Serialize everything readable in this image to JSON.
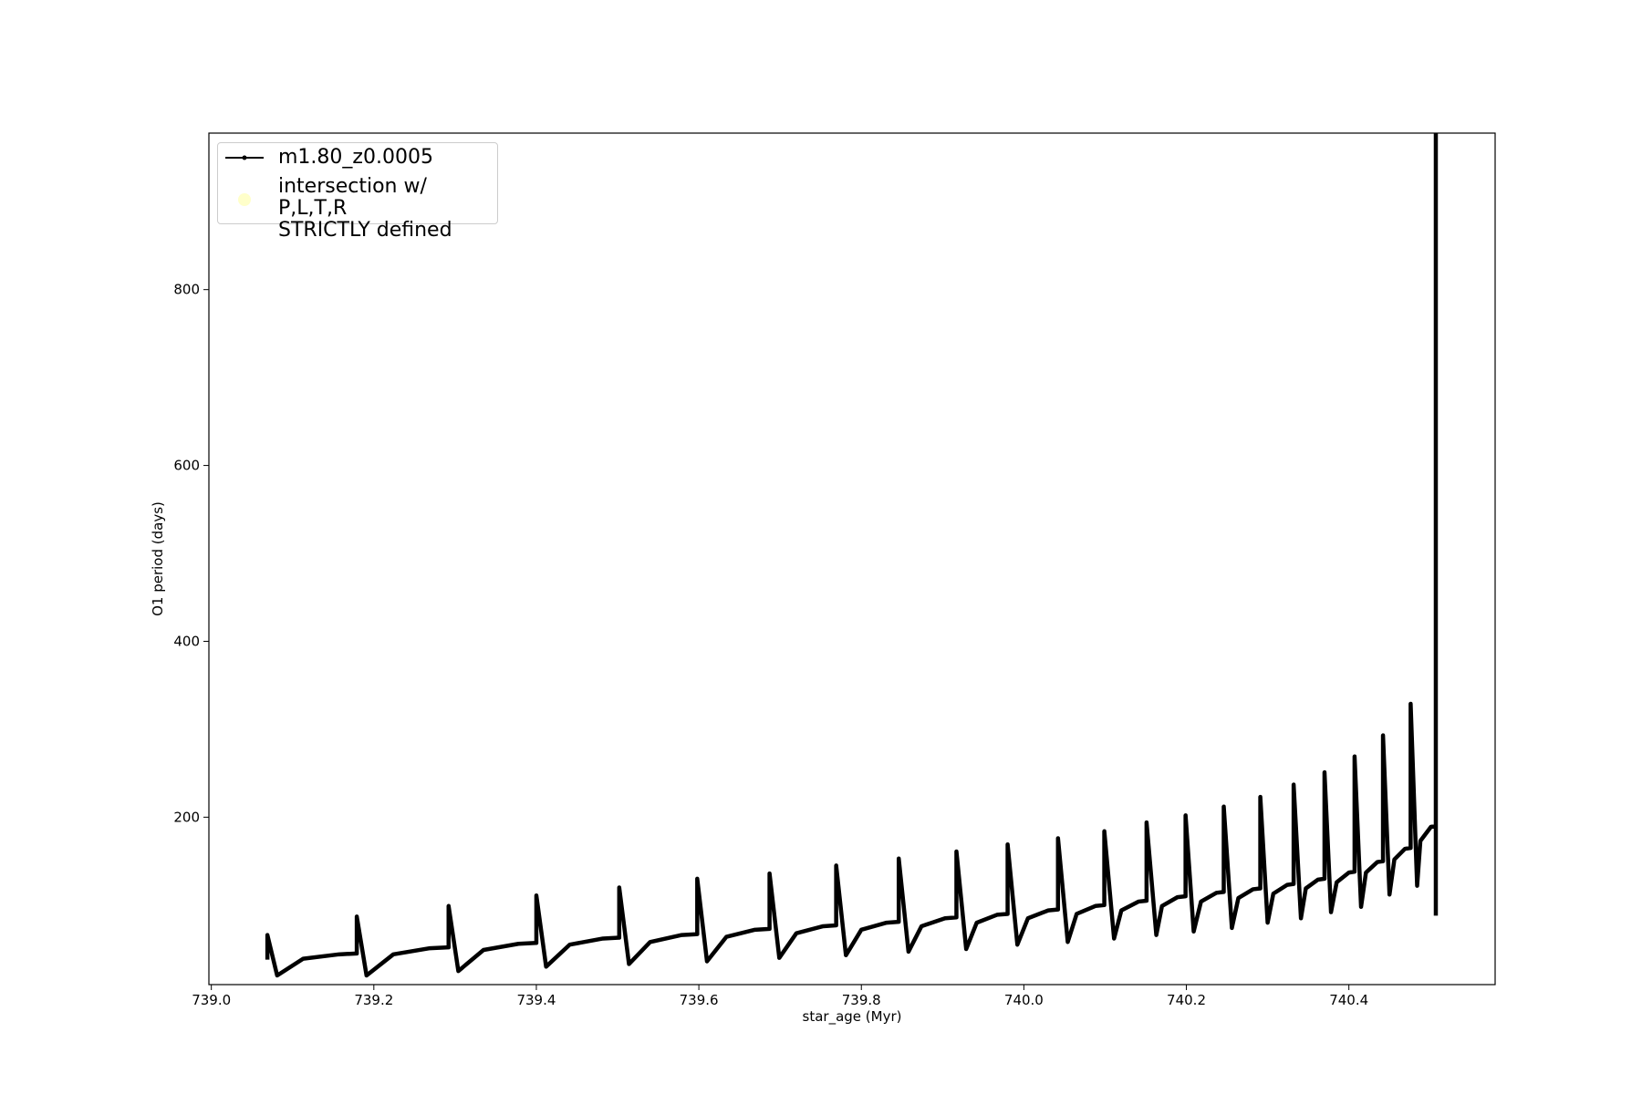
{
  "chart_data": {
    "type": "line",
    "xlabel": "star_age (Myr)",
    "ylabel": "O1 period (days)",
    "xlim": [
      738.997,
      740.58
    ],
    "ylim": [
      9.6,
      978
    ],
    "xticks": [
      {
        "value": 739.0,
        "label": "739.0"
      },
      739.2,
      739.4,
      739.6,
      739.8,
      {
        "value": 740.0,
        "label": "740.0"
      },
      740.2,
      740.4
    ],
    "yticks": [
      200,
      400,
      600,
      800
    ],
    "legend": "upper left",
    "series": [
      {
        "name": "m1.80_z0.0005",
        "color": "#000000",
        "type": "line",
        "x": [
          739.069,
          739.069,
          739.081,
          739.113,
          739.157,
          739.179,
          739.179,
          739.191,
          739.224,
          739.269,
          739.292,
          739.292,
          739.304,
          739.335,
          739.378,
          739.4,
          739.4,
          739.412,
          739.441,
          739.482,
          739.502,
          739.502,
          739.514,
          739.54,
          739.579,
          739.598,
          739.598,
          739.61,
          739.634,
          739.669,
          739.687,
          739.687,
          739.699,
          739.72,
          739.753,
          739.769,
          739.769,
          739.781,
          739.8,
          739.831,
          739.846,
          739.846,
          739.858,
          739.874,
          739.903,
          739.917,
          739.917,
          739.929,
          739.942,
          739.967,
          739.98,
          739.98,
          739.992,
          740.005,
          740.03,
          740.042,
          740.042,
          740.054,
          740.065,
          740.088,
          740.099,
          740.099,
          740.111,
          740.12,
          740.141,
          740.151,
          740.151,
          740.163,
          740.17,
          740.189,
          740.199,
          740.199,
          740.209,
          740.218,
          740.237,
          740.246,
          740.246,
          740.256,
          740.264,
          740.282,
          740.291,
          740.291,
          740.3,
          740.307,
          740.324,
          740.332,
          740.332,
          740.341,
          740.347,
          740.362,
          740.37,
          740.37,
          740.378,
          740.385,
          740.4,
          740.407,
          740.407,
          740.415,
          740.421,
          740.435,
          740.442,
          740.442,
          740.45,
          740.456,
          740.469,
          740.476,
          740.476,
          740.484,
          740.488,
          740.501,
          740.507,
          740.507,
          740.507
        ],
        "values": [
          38,
          66,
          20,
          39,
          44,
          45,
          87,
          20,
          44,
          51,
          52,
          99,
          25,
          49,
          56,
          57,
          111,
          30,
          55,
          62,
          63,
          120,
          33,
          58,
          66,
          67,
          130,
          36,
          64,
          72,
          73,
          136,
          40,
          68,
          76,
          77,
          145,
          43,
          72,
          80,
          81,
          153,
          47,
          76,
          85,
          86,
          161,
          50,
          80,
          89,
          90,
          169,
          55,
          85,
          94,
          95,
          176,
          58,
          90,
          99,
          100,
          184,
          62,
          94,
          104,
          105,
          194,
          66,
          99,
          109,
          110,
          202,
          70,
          104,
          114,
          115,
          212,
          74,
          108,
          118,
          119,
          223,
          80,
          113,
          123,
          124,
          237,
          85,
          119,
          129,
          130,
          251,
          92,
          126,
          137,
          138,
          269,
          98,
          137,
          149,
          150,
          293,
          112,
          152,
          164,
          165,
          329,
          122,
          173,
          189,
          190,
          985,
          88
        ]
      },
      {
        "name": "intersection w/ P,L,T,R\nSTRICTLY defined",
        "color": "#ffffb3",
        "type": "scatter",
        "x": [],
        "values": []
      }
    ]
  }
}
